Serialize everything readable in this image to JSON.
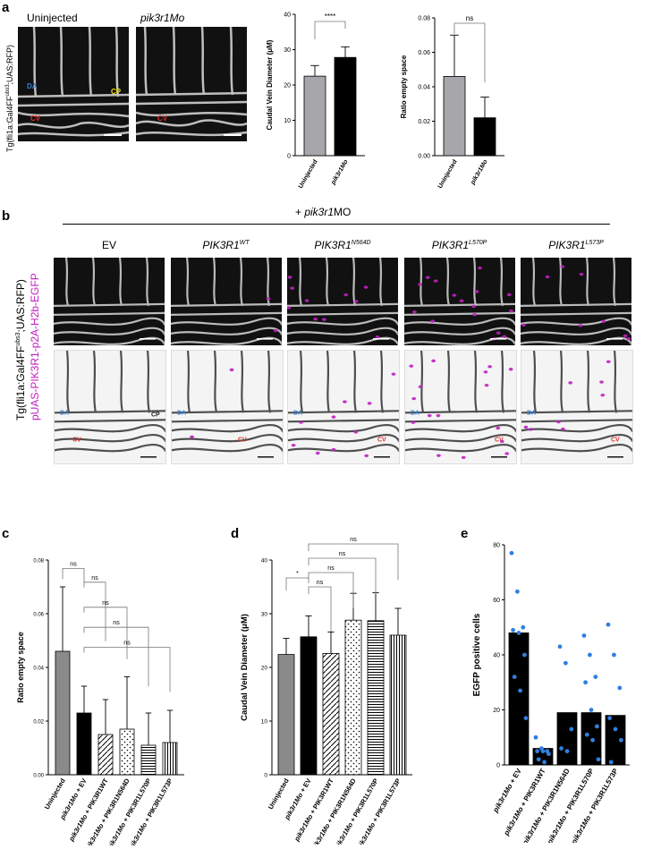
{
  "panel_a": {
    "label": "a",
    "images": [
      {
        "title": "Uninjected",
        "tags": [
          "DA",
          "CV"
        ]
      },
      {
        "title": "pik3r1Mo",
        "tags": [
          "CV"
        ]
      }
    ],
    "cp_tag": "CP",
    "side_label": "Tg(fli1a:Gal4FF",
    "side_label_sup": "ubs3",
    "side_label_end": ";UAS:RFP)",
    "colors": {
      "bar_gray": "#a6a6ab",
      "bar_black": "#000000",
      "da_tag": "#3b7fd1",
      "cv_tag": "#e0302a",
      "cp_tag": "#f0e000"
    }
  },
  "panel_b": {
    "label": "b",
    "header": "+ pik3r1MO",
    "columns": [
      {
        "name": "EV",
        "sup": ""
      },
      {
        "name": "PIK3R1",
        "sup": "WT"
      },
      {
        "name": "PIK3R1",
        "sup": "N564D"
      },
      {
        "name": "PIK3R1",
        "sup": "L570P"
      },
      {
        "name": "PIK3R1",
        "sup": "L573P"
      }
    ],
    "side_label_1": "Tg(fli1a:Gal4FF",
    "side_label_1_sup": "ubs3",
    "side_label_1_end": ";UAS:RFP)",
    "side_label_2": "pUAS-PIK3R1-p2A-H2b-EGFP",
    "tags": {
      "da": "DA",
      "cv": "CV",
      "cp": "CP"
    },
    "colors": {
      "magenta": "#c020c0"
    }
  },
  "chart_data": [
    {
      "id": "a1",
      "type": "bar",
      "categories": [
        "Uninjected",
        "pik3r1Mo"
      ],
      "values": [
        22.5,
        27.8
      ],
      "errors": [
        3.0,
        3.0
      ],
      "ylabel": "Caudal Vein Diameter (μM)",
      "ylim": [
        0,
        40
      ],
      "yticks": [
        "0",
        "10",
        "20",
        "30",
        "40"
      ],
      "significance": [
        {
          "label": "****",
          "pair": [
            0,
            1
          ]
        }
      ]
    },
    {
      "id": "a2",
      "type": "bar",
      "categories": [
        "Uninjected",
        "pik3r1Mo"
      ],
      "values": [
        0.046,
        0.022
      ],
      "errors": [
        0.024,
        0.012
      ],
      "ylabel": "Ratio empty space",
      "ylim": [
        0,
        0.08
      ],
      "yticks": [
        "0.00",
        "0.02",
        "0.04",
        "0.06",
        "0.08"
      ],
      "significance": [
        {
          "label": "ns",
          "pair": [
            0,
            1
          ]
        }
      ]
    },
    {
      "id": "c",
      "type": "bar",
      "label": "c",
      "categories": [
        "Uninjected",
        "pik3r1Mo + EV",
        "pik3r1Mo + PIK3R1WT",
        "pik3r1Mo + PIK3R1N564D",
        "pik3r1Mo + PIK3R1L570P",
        "pik3r1Mo + PIK3R1L573P"
      ],
      "values": [
        0.046,
        0.023,
        0.015,
        0.017,
        0.011,
        0.012
      ],
      "errors": [
        0.024,
        0.01,
        0.013,
        0.0195,
        0.012,
        0.012
      ],
      "ylabel": "Ratio empty space",
      "ylim": [
        0,
        0.08
      ],
      "yticks": [
        "0.00",
        "0.02",
        "0.04",
        "0.06",
        "0.08"
      ],
      "significance": [
        {
          "label": "ns",
          "pair": [
            0,
            1
          ]
        },
        {
          "label": "ns",
          "pair": [
            1,
            2
          ]
        },
        {
          "label": "ns",
          "pair": [
            1,
            3
          ]
        },
        {
          "label": "ns",
          "pair": [
            1,
            4
          ]
        },
        {
          "label": "ns",
          "pair": [
            1,
            5
          ]
        }
      ]
    },
    {
      "id": "d",
      "type": "bar",
      "label": "d",
      "categories": [
        "Uninjected",
        "pik3r1Mo + EV",
        "pik3r1Mo + PIK3R1WT",
        "pik3r1Mo + PIK3R1N564D",
        "pik3r1Mo + PIK3R1L570P",
        "pik3r1Mo + PIK3R1L573P"
      ],
      "values": [
        22.4,
        25.7,
        22.6,
        28.8,
        28.7,
        26.0
      ],
      "errors": [
        3.0,
        3.9,
        4.0,
        5.0,
        5.2,
        5.0
      ],
      "ylabel": "Caudal Vein Diameter (μM)",
      "ylim": [
        0,
        40
      ],
      "yticks": [
        "0",
        "10",
        "20",
        "30",
        "40"
      ],
      "significance": [
        {
          "label": "*",
          "pair": [
            0,
            1
          ]
        },
        {
          "label": "ns",
          "pair": [
            1,
            2
          ]
        },
        {
          "label": "ns",
          "pair": [
            1,
            3
          ]
        },
        {
          "label": "ns",
          "pair": [
            1,
            4
          ]
        },
        {
          "label": "ns",
          "pair": [
            1,
            5
          ]
        }
      ]
    },
    {
      "id": "e",
      "type": "bar",
      "label": "e",
      "categories": [
        "pik3r1Mo + EV",
        "pik3r1Mo + PIK3R1WT",
        "pik3r1Mo + PIK3R1N564D",
        "pik3r1Mo + PIK3R1L570P",
        "pik3r1Mo + PIK3R1L573P"
      ],
      "values": [
        48,
        6,
        19,
        19,
        18
      ],
      "points": [
        [
          77,
          63,
          50,
          49,
          48,
          40,
          32,
          27,
          17
        ],
        [
          10,
          6,
          5,
          5,
          5,
          4,
          2,
          1
        ],
        [
          43,
          37,
          13,
          6,
          5
        ],
        [
          47,
          40,
          32,
          30,
          20,
          14,
          11,
          9,
          2
        ],
        [
          51,
          40,
          28,
          17,
          13,
          9,
          1
        ]
      ],
      "ylabel": "EGFP positive cells",
      "ylim": [
        0,
        80
      ],
      "yticks": [
        "0",
        "20",
        "40",
        "60",
        "80"
      ],
      "colors": {
        "points": "#2f7fdf",
        "bar": "#000000"
      }
    }
  ]
}
